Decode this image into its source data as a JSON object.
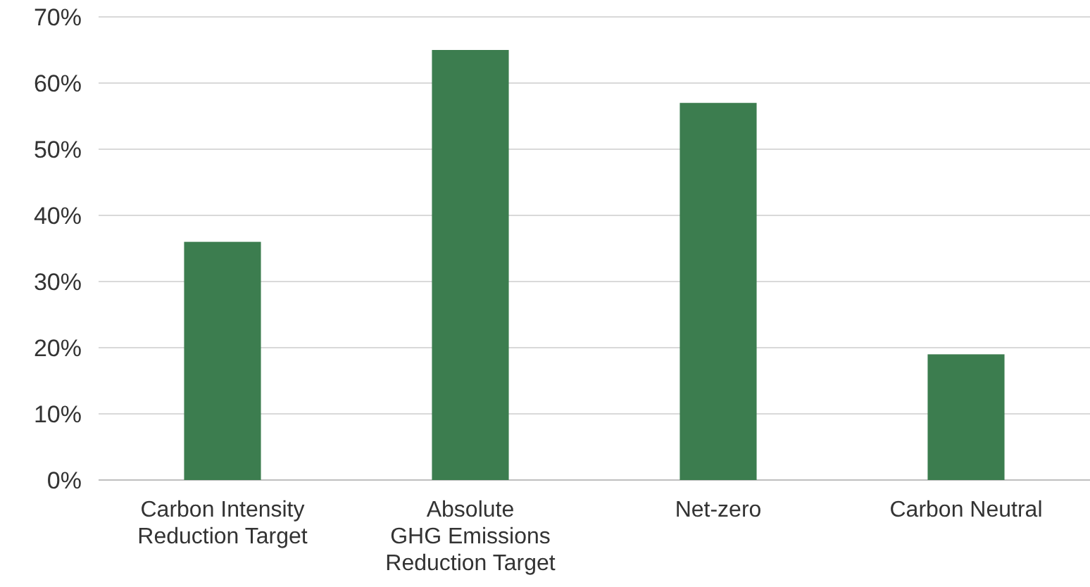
{
  "chart_data": {
    "type": "bar",
    "categories": [
      "Carbon Intensity\nReduction Target",
      "Absolute\nGHG Emissions\nReduction Target",
      "Net-zero",
      "Carbon Neutral"
    ],
    "values": [
      36,
      65,
      57,
      19
    ],
    "color": "#3c7d4f",
    "ylim": [
      0,
      70
    ],
    "yticks": [
      {
        "value": 0,
        "label": "0%"
      },
      {
        "value": 10,
        "label": "10%"
      },
      {
        "value": 20,
        "label": "20%"
      },
      {
        "value": 30,
        "label": "30%"
      },
      {
        "value": 40,
        "label": "40%"
      },
      {
        "value": 50,
        "label": "50%"
      },
      {
        "value": 60,
        "label": "60%"
      },
      {
        "value": 70,
        "label": "70%"
      }
    ],
    "grid": "y"
  }
}
